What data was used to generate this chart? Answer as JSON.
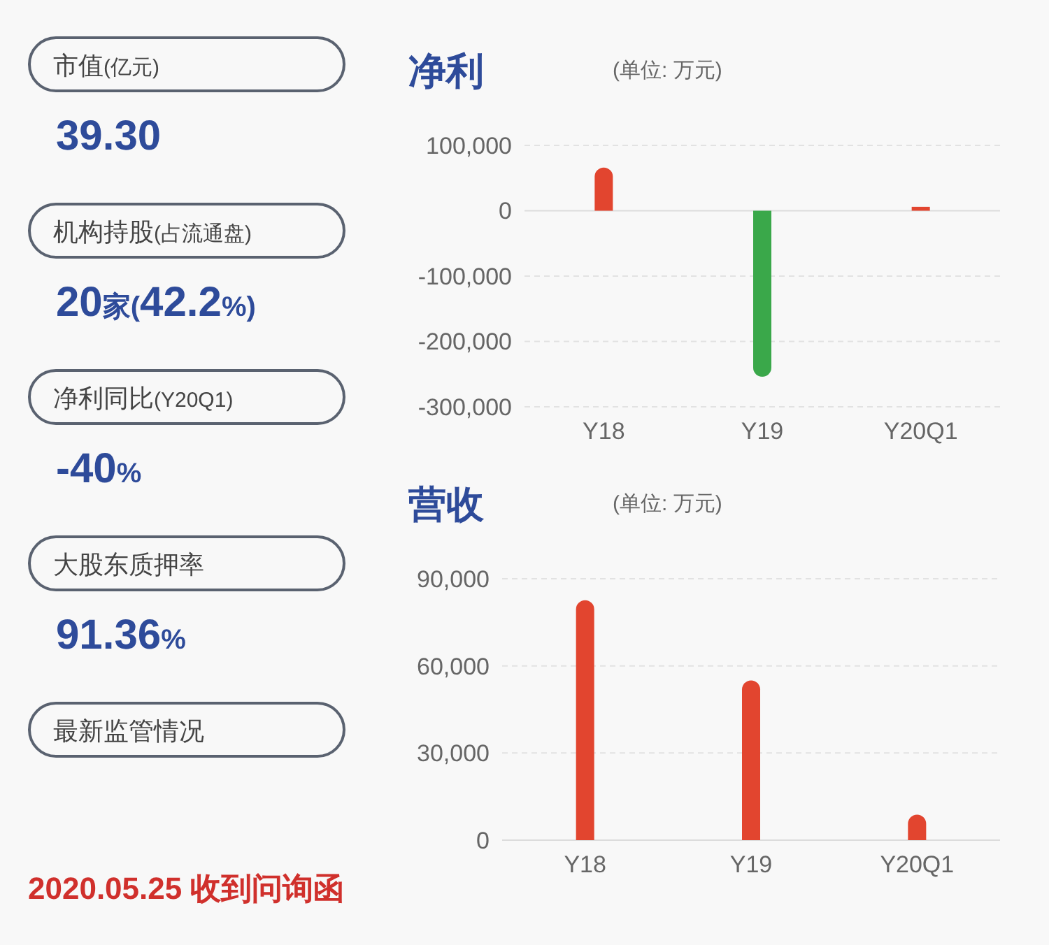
{
  "chart_data": [
    {
      "type": "other",
      "annotations": [
        "市值(亿元)",
        "39.30",
        "机构持股(占流通盘)",
        "20家(42.2%)",
        "净利同比(Y20Q1)",
        "-40%",
        "大股东质押率",
        "91.36%",
        "最新监管情况",
        "2020.05.25 收到问询函"
      ]
    },
    {
      "type": "bar",
      "title": "净利",
      "subtitle": "(单位: 万元)",
      "categories": [
        "Y18",
        "Y19",
        "Y20Q1"
      ],
      "values": [
        66000,
        -254000,
        6000
      ],
      "colors": [
        "#e2452f",
        "#3aa84a",
        "#e2452f"
      ],
      "ylim": [
        -300000,
        100000
      ],
      "yticks": [
        {
          "value": -300000,
          "label": "-300,000"
        },
        {
          "value": -200000,
          "label": "-200,000"
        },
        {
          "value": -100000,
          "label": "-100,000"
        },
        {
          "value": 0,
          "label": "0"
        },
        {
          "value": 100000,
          "label": "100,000"
        }
      ],
      "grid": "y"
    },
    {
      "type": "bar",
      "title": "营收",
      "subtitle": "(单位: 万元)",
      "categories": [
        "Y18",
        "Y19",
        "Y20Q1"
      ],
      "values": [
        82600,
        55000,
        8800
      ],
      "colors": [
        "#e2452f",
        "#e2452f",
        "#e2452f"
      ],
      "ylim": [
        0,
        90000
      ],
      "yticks": [
        {
          "value": 0,
          "label": "0"
        },
        {
          "value": 30000,
          "label": "30,000"
        },
        {
          "value": 60000,
          "label": "60,000"
        },
        {
          "value": 90000,
          "label": "90,000"
        }
      ],
      "grid": "y"
    }
  ]
}
